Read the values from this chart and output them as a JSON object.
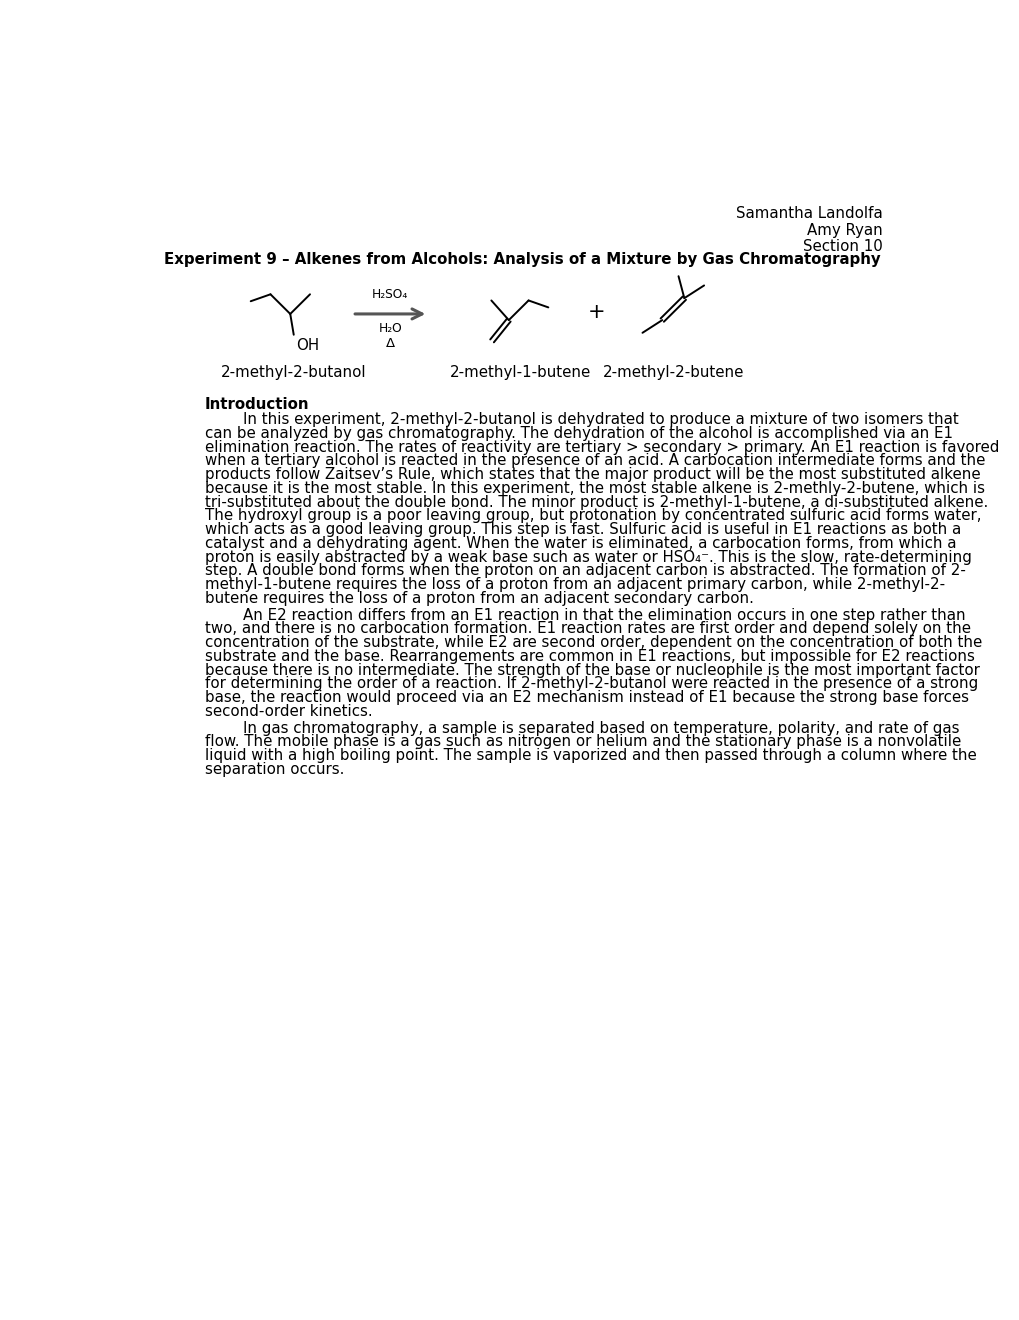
{
  "header_right": [
    "Samantha Landolfa",
    "Amy Ryan",
    "Section 10"
  ],
  "title": "Experiment 9 – Alkenes from Alcohols: Analysis of a Mixture by Gas Chromatography",
  "compound1_label": "2-methyl-2-butanol",
  "compound2_label": "2-methyl-1-butene",
  "compound3_label": "2-methyl-2-butene",
  "reagent1": "H₂SO₄",
  "reagent2": "H₂O",
  "reagent3": "Δ",
  "intro_heading": "Introduction",
  "para1_indent": "        In this experiment, 2-methyl-2-butanol is dehydrated to produce a mixture of two isomers that",
  "para1_lines": [
    "        In this experiment, 2-methyl-2-butanol is dehydrated to produce a mixture of two isomers that",
    "can be analyzed by gas chromatography. The dehydration of the alcohol is accomplished via an E1",
    "elimination reaction. The rates of reactivity are tertiary > secondary > primary. An E1 reaction is favored",
    "when a tertiary alcohol is reacted in the presence of an acid. A carbocation intermediate forms and the",
    "products follow Zaitsev’s Rule, which states that the major product will be the most substituted alkene",
    "because it is the most stable. In this experiment, the most stable alkene is 2-methly-2-butene, which is",
    "tri-substituted about the double bond. The minor product is 2-methyl-1-butene, a di-substituted alkene.",
    "The hydroxyl group is a poor leaving group, but protonation by concentrated sulfuric acid forms water,",
    "which acts as a good leaving group. This step is fast. Sulfuric acid is useful in E1 reactions as both a",
    "catalyst and a dehydrating agent. When the water is eliminated, a carbocation forms, from which a",
    "proton is easily abstracted by a weak base such as water or HSO₄⁻. This is the slow, rate-determining",
    "step. A double bond forms when the proton on an adjacent carbon is abstracted. The formation of 2-",
    "methyl-1-butene requires the loss of a proton from an adjacent primary carbon, while 2-methyl-2-",
    "butene requires the loss of a proton from an adjacent secondary carbon."
  ],
  "para2_lines": [
    "        An E2 reaction differs from an E1 reaction in that the elimination occurs in one step rather than",
    "two, and there is no carbocation formation. E1 reaction rates are first order and depend solely on the",
    "concentration of the substrate, while E2 are second order, dependent on the concentration of both the",
    "substrate and the base. Rearrangements are common in E1 reactions, but impossible for E2 reactions",
    "because there is no intermediate. The strength of the base or nucleophile is the most important factor",
    "for determining the order of a reaction. If 2-methyl-2-butanol were reacted in the presence of a strong",
    "base, the reaction would proceed via an E2 mechanism instead of E1 because the strong base forces",
    "second-order kinetics."
  ],
  "para3_lines": [
    "        In gas chromatography, a sample is separated based on temperature, polarity, and rate of gas",
    "flow. The mobile phase is a gas such as nitrogen or helium and the stationary phase is a nonvolatile",
    "liquid with a high boiling point. The sample is vaporized and then passed through a column where the",
    "separation occurs."
  ],
  "bg_color": "#ffffff",
  "text_color": "#000000"
}
